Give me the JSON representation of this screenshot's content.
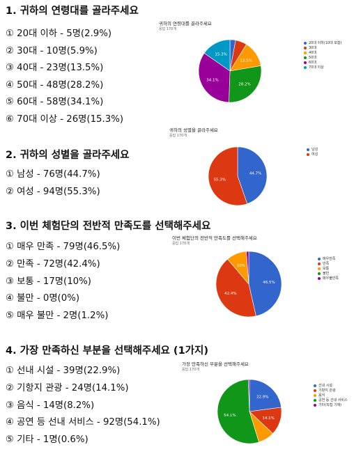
{
  "questions": [
    {
      "title": "1. 귀하의 연령대를 골라주세요",
      "options": [
        "① 20대 이하 - 5명(2.9%)",
        "② 30대 - 10명(5.9%)",
        "③ 40대 - 23명(13.5%)",
        "④ 50대 - 48명(28.2%)",
        "⑤ 60대 - 58명(34.1%)",
        "⑥ 70대 이상 - 26명(15.3%)"
      ],
      "chart_title": "귀하의 연령대를 골라주세요",
      "chart_sub": "응답 170개",
      "legend": [
        "20대 이하(10대 포함)",
        "30대",
        "40대",
        "50대",
        "60대",
        "70대 이상"
      ],
      "values": [
        2.9,
        5.9,
        13.5,
        28.2,
        34.1,
        15.3
      ],
      "slice_labels": [
        "",
        "",
        "13.5%",
        "28.2%",
        "34.1%",
        "15.3%"
      ],
      "colors": [
        "#3366cc",
        "#dc3912",
        "#ff9900",
        "#109618",
        "#990099",
        "#0099c6"
      ]
    },
    {
      "title": "2. 귀하의 성별을 골라주세요",
      "options": [
        "① 남성 - 76명(44.7%)",
        "② 여성 - 94명(55.3%)"
      ],
      "chart_title": "귀하의 성별을 골라주세요",
      "chart_sub": "응답 170개",
      "legend": [
        "남성",
        "여성"
      ],
      "values": [
        44.7,
        55.3
      ],
      "slice_labels": [
        "44.7%",
        "55.3%"
      ],
      "colors": [
        "#3366cc",
        "#dc3912"
      ]
    },
    {
      "title": "3. 이번 체험단의 전반적 만족도를 선택해주세요",
      "options": [
        "① 매우 만족 - 79명(46.5%)",
        "② 만족 - 72명(42.4%)",
        "③ 보통 - 17명(10%)",
        "④ 불만 - 0명(0%)",
        "⑤ 매우 불만 - 2명(1.2%)"
      ],
      "chart_title": "이번 체험단의 전반적 만족도를 선택해주세요",
      "chart_sub": "응답 170개",
      "legend": [
        "매우만족",
        "만족",
        "보통",
        "불만",
        "매우불만족"
      ],
      "values": [
        46.5,
        42.4,
        10,
        0,
        1.2
      ],
      "slice_labels": [
        "46.5%",
        "42.4%",
        "10%",
        "",
        ""
      ],
      "colors": [
        "#3366cc",
        "#dc3912",
        "#ff9900",
        "#109618",
        "#990099"
      ]
    },
    {
      "title": "4. 가장 만족하신 부분을 선택해주세요 (1가지)",
      "options": [
        "① 선내 시설 - 39명(22.9%)",
        "② 기항지 관광 - 24명(14.1%)",
        "③ 음식 - 14명(8.2%)",
        "④ 공연 등 선내 서비스 - 92명(54.1%)",
        "⑤ 기타 - 1명(0.6%)"
      ],
      "chart_title": "가장 만족하신 부분을 선택해주세요",
      "chart_sub": "응답 170개",
      "legend": [
        "선내 시설",
        "기항지 관광",
        "음식",
        "공연 등 선내 서비스",
        "기타(직접 기재)"
      ],
      "values": [
        22.9,
        14.1,
        8.2,
        54.1,
        0.6
      ],
      "slice_labels": [
        "22.9%",
        "14.1%",
        "",
        "54.1%",
        ""
      ],
      "colors": [
        "#3366cc",
        "#dc3912",
        "#ff9900",
        "#109618",
        "#990099"
      ]
    }
  ]
}
